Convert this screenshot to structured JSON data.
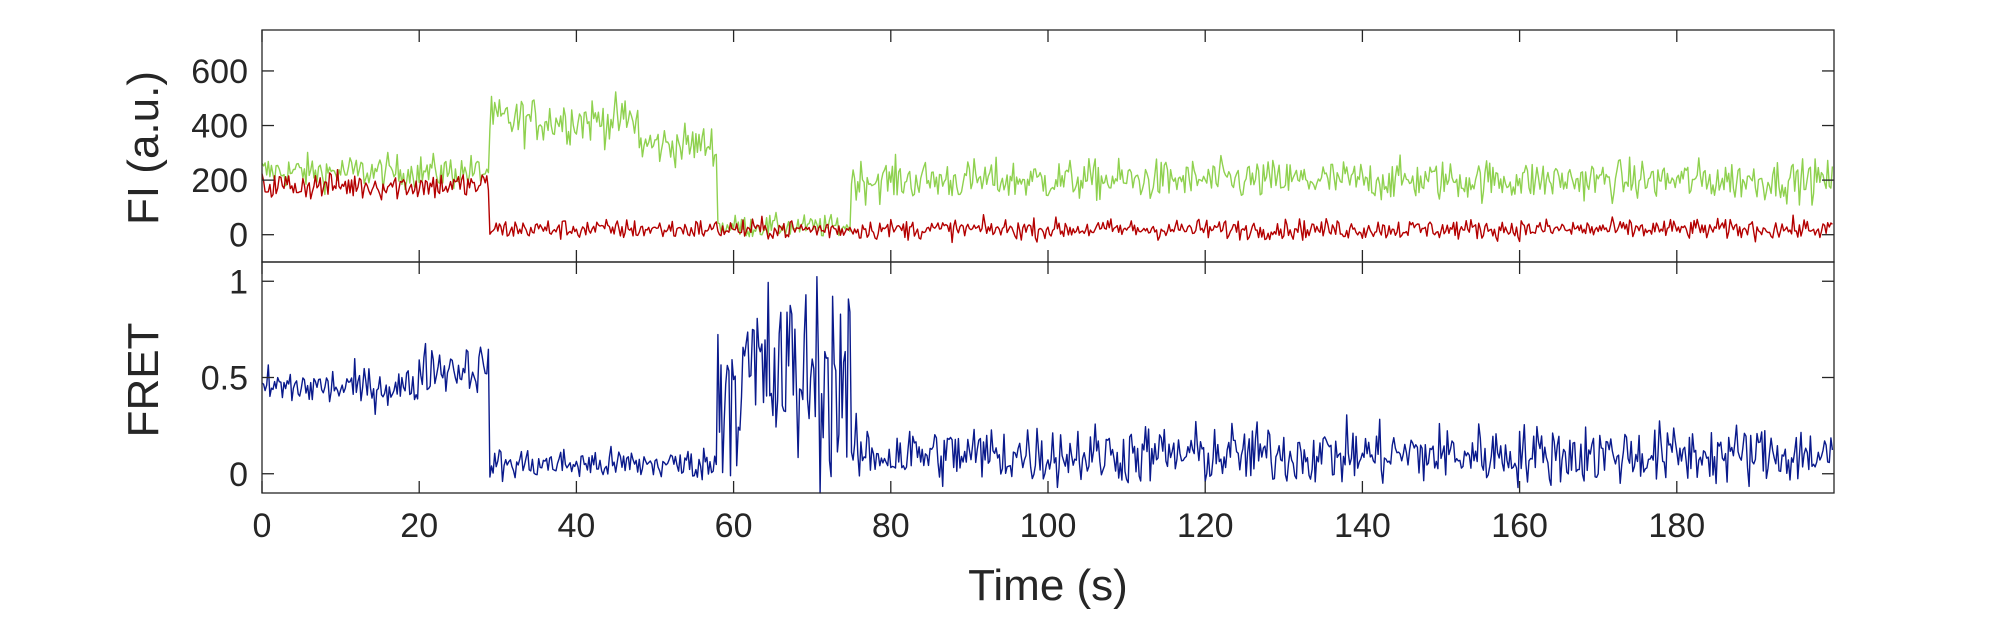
{
  "chart_data": [
    {
      "type": "line",
      "panel": "top",
      "ylabel": "FI (a.u.)",
      "xlabel": "",
      "xlim": [
        0,
        200
      ],
      "ylim": [
        -100,
        750
      ],
      "yticks": [
        0,
        200,
        400,
        600
      ],
      "grid": false,
      "legend": "none",
      "series": [
        {
          "name": "",
          "color": "#8fd14f",
          "segments": [
            {
              "x": [
                0,
                29
              ],
              "mean": 230,
              "noise": 60
            },
            {
              "x": [
                29,
                48
              ],
              "mean": 420,
              "noise": 80
            },
            {
              "x": [
                48,
                58
              ],
              "mean": 330,
              "noise": 70
            },
            {
              "x": [
                58,
                75
              ],
              "mean": 30,
              "noise": 40
            },
            {
              "x": [
                75,
                200
              ],
              "mean": 200,
              "noise": 70
            }
          ]
        },
        {
          "name": "",
          "color": "#b40000",
          "segments": [
            {
              "x": [
                0,
                29
              ],
              "mean": 180,
              "noise": 50
            },
            {
              "x": [
                29,
                200
              ],
              "mean": 20,
              "noise": 35
            }
          ]
        }
      ]
    },
    {
      "type": "line",
      "panel": "bottom",
      "ylabel": "FRET",
      "xlabel": "Time (s)",
      "xlim": [
        0,
        200
      ],
      "ylim": [
        -0.1,
        1.1
      ],
      "xticks": [
        0,
        20,
        40,
        60,
        80,
        100,
        120,
        140,
        160,
        180
      ],
      "yticks": [
        0,
        0.5,
        1
      ],
      "ytick_labels": [
        "0",
        "0.5",
        "1"
      ],
      "grid": false,
      "legend": "none",
      "series": [
        {
          "name": "",
          "color": "#0a1a8c",
          "segments": [
            {
              "x": [
                0,
                20
              ],
              "mean": 0.45,
              "noise": 0.1
            },
            {
              "x": [
                20,
                29
              ],
              "mean": 0.55,
              "noise": 0.12
            },
            {
              "x": [
                29,
                58
              ],
              "mean": 0.05,
              "noise": 0.08
            },
            {
              "x": [
                58,
                75
              ],
              "mean": 0.5,
              "noise": 0.5
            },
            {
              "x": [
                75,
                200
              ],
              "mean": 0.1,
              "noise": 0.15
            }
          ]
        }
      ]
    }
  ]
}
